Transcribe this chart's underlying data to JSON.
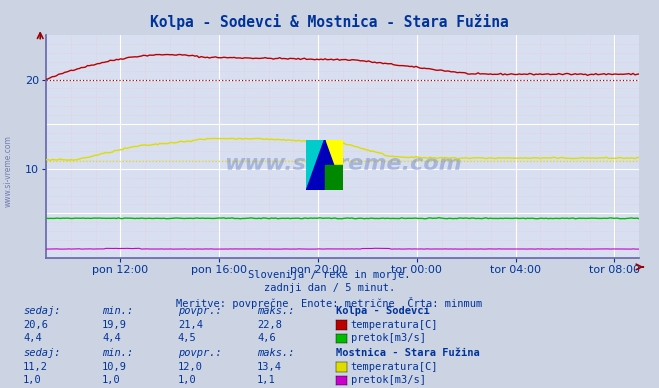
{
  "title": "Kolpa - Sodevci & Mostnica - Stara Fužina",
  "background_color": "#ccd4e4",
  "plot_bg_color": "#d8dff0",
  "x_ticks_labels": [
    "pon 12:00",
    "pon 16:00",
    "pon 20:00",
    "tor 00:00",
    "tor 04:00",
    "tor 08:00"
  ],
  "x_ticks_positions": [
    0.125,
    0.292,
    0.458,
    0.625,
    0.792,
    0.958
  ],
  "ylim": [
    0,
    25
  ],
  "yticks": [
    10,
    20
  ],
  "subtitle_line1": "Slovenija / reke in morje.",
  "subtitle_line2": "zadnji dan / 5 minut.",
  "subtitle_line3": "Meritve: povprečne  Enote: metrične  Črta: minmum",
  "watermark": "www.si-vreme.com",
  "station1_name": "Kolpa - Sodevci",
  "station1_temp_color": "#bb0000",
  "station1_flow_color": "#00bb00",
  "station1_temp_min": 19.9,
  "station1_temp_max": 22.8,
  "station1_temp_avg": 21.4,
  "station1_temp_now": 20.6,
  "station1_flow_min": 4.4,
  "station1_flow_max": 4.6,
  "station1_flow_avg": 4.5,
  "station1_flow_now": 4.4,
  "station2_name": "Mostnica - Stara Fužina",
  "station2_temp_color": "#dddd00",
  "station2_flow_color": "#cc00cc",
  "station2_temp_min": 10.9,
  "station2_temp_max": 13.4,
  "station2_temp_avg": 12.0,
  "station2_temp_now": 11.2,
  "station2_flow_min": 1.0,
  "station2_flow_max": 1.1,
  "station2_flow_avg": 1.0,
  "station2_flow_now": 1.0,
  "n_points": 288,
  "text_color": "#003399"
}
